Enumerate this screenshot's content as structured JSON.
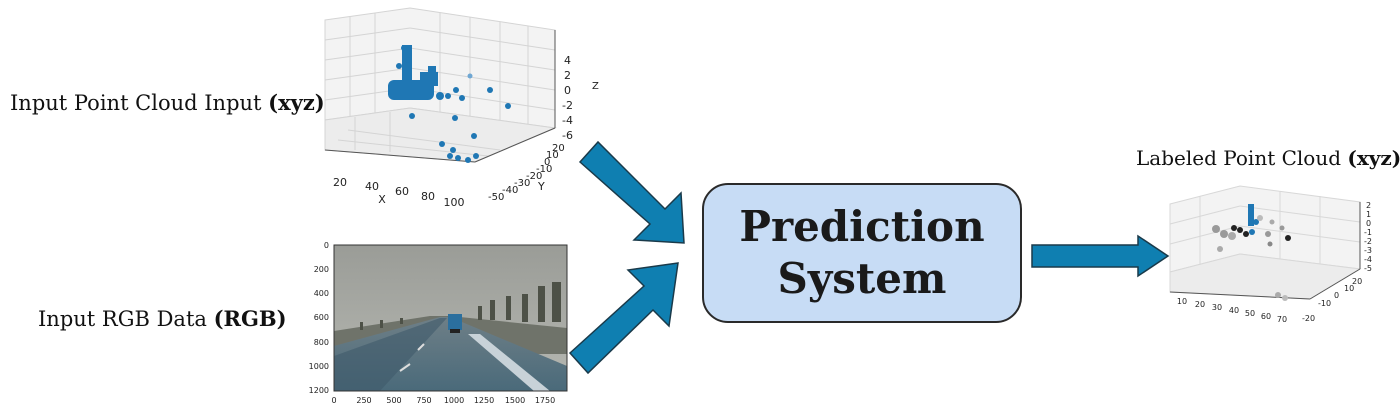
{
  "input_point_cloud": {
    "label": "Input Point Cloud Input",
    "label_bold": "(xyz)",
    "x_axis_label": "X",
    "y_axis_label": "Y",
    "z_axis_label": "Z",
    "x_ticks": [
      "20",
      "40",
      "60",
      "80",
      "100"
    ],
    "y_ticks": [
      "-50",
      "-40",
      "-30",
      "-20",
      "-10",
      "0",
      "10",
      "20"
    ],
    "z_ticks": [
      "4",
      "2",
      "0",
      "-2",
      "-4",
      "-6"
    ],
    "point_color": "#1f77b4"
  },
  "input_rgb": {
    "label": "Input RGB Data",
    "label_bold": "(RGB)",
    "x_ticks": [
      "0",
      "250",
      "500",
      "750",
      "1000",
      "1250",
      "1500",
      "1750"
    ],
    "y_ticks": [
      "0",
      "200",
      "400",
      "600",
      "800",
      "1000",
      "1200"
    ]
  },
  "prediction_system": {
    "line1": "Prediction",
    "line2": "System",
    "fill_color": "#c7dcf5"
  },
  "output_point_cloud": {
    "label": "Labeled Point Cloud",
    "label_bold": "(xyz)",
    "x_ticks": [
      "10",
      "20",
      "30",
      "40",
      "50",
      "60",
      "70"
    ],
    "y_ticks": [
      "-20",
      "-10",
      "0",
      "10",
      "20"
    ],
    "z_ticks": [
      "2",
      "1",
      "0",
      "-1",
      "-2",
      "-3",
      "-4",
      "-5"
    ]
  },
  "arrow_color": "#0f7fb1"
}
